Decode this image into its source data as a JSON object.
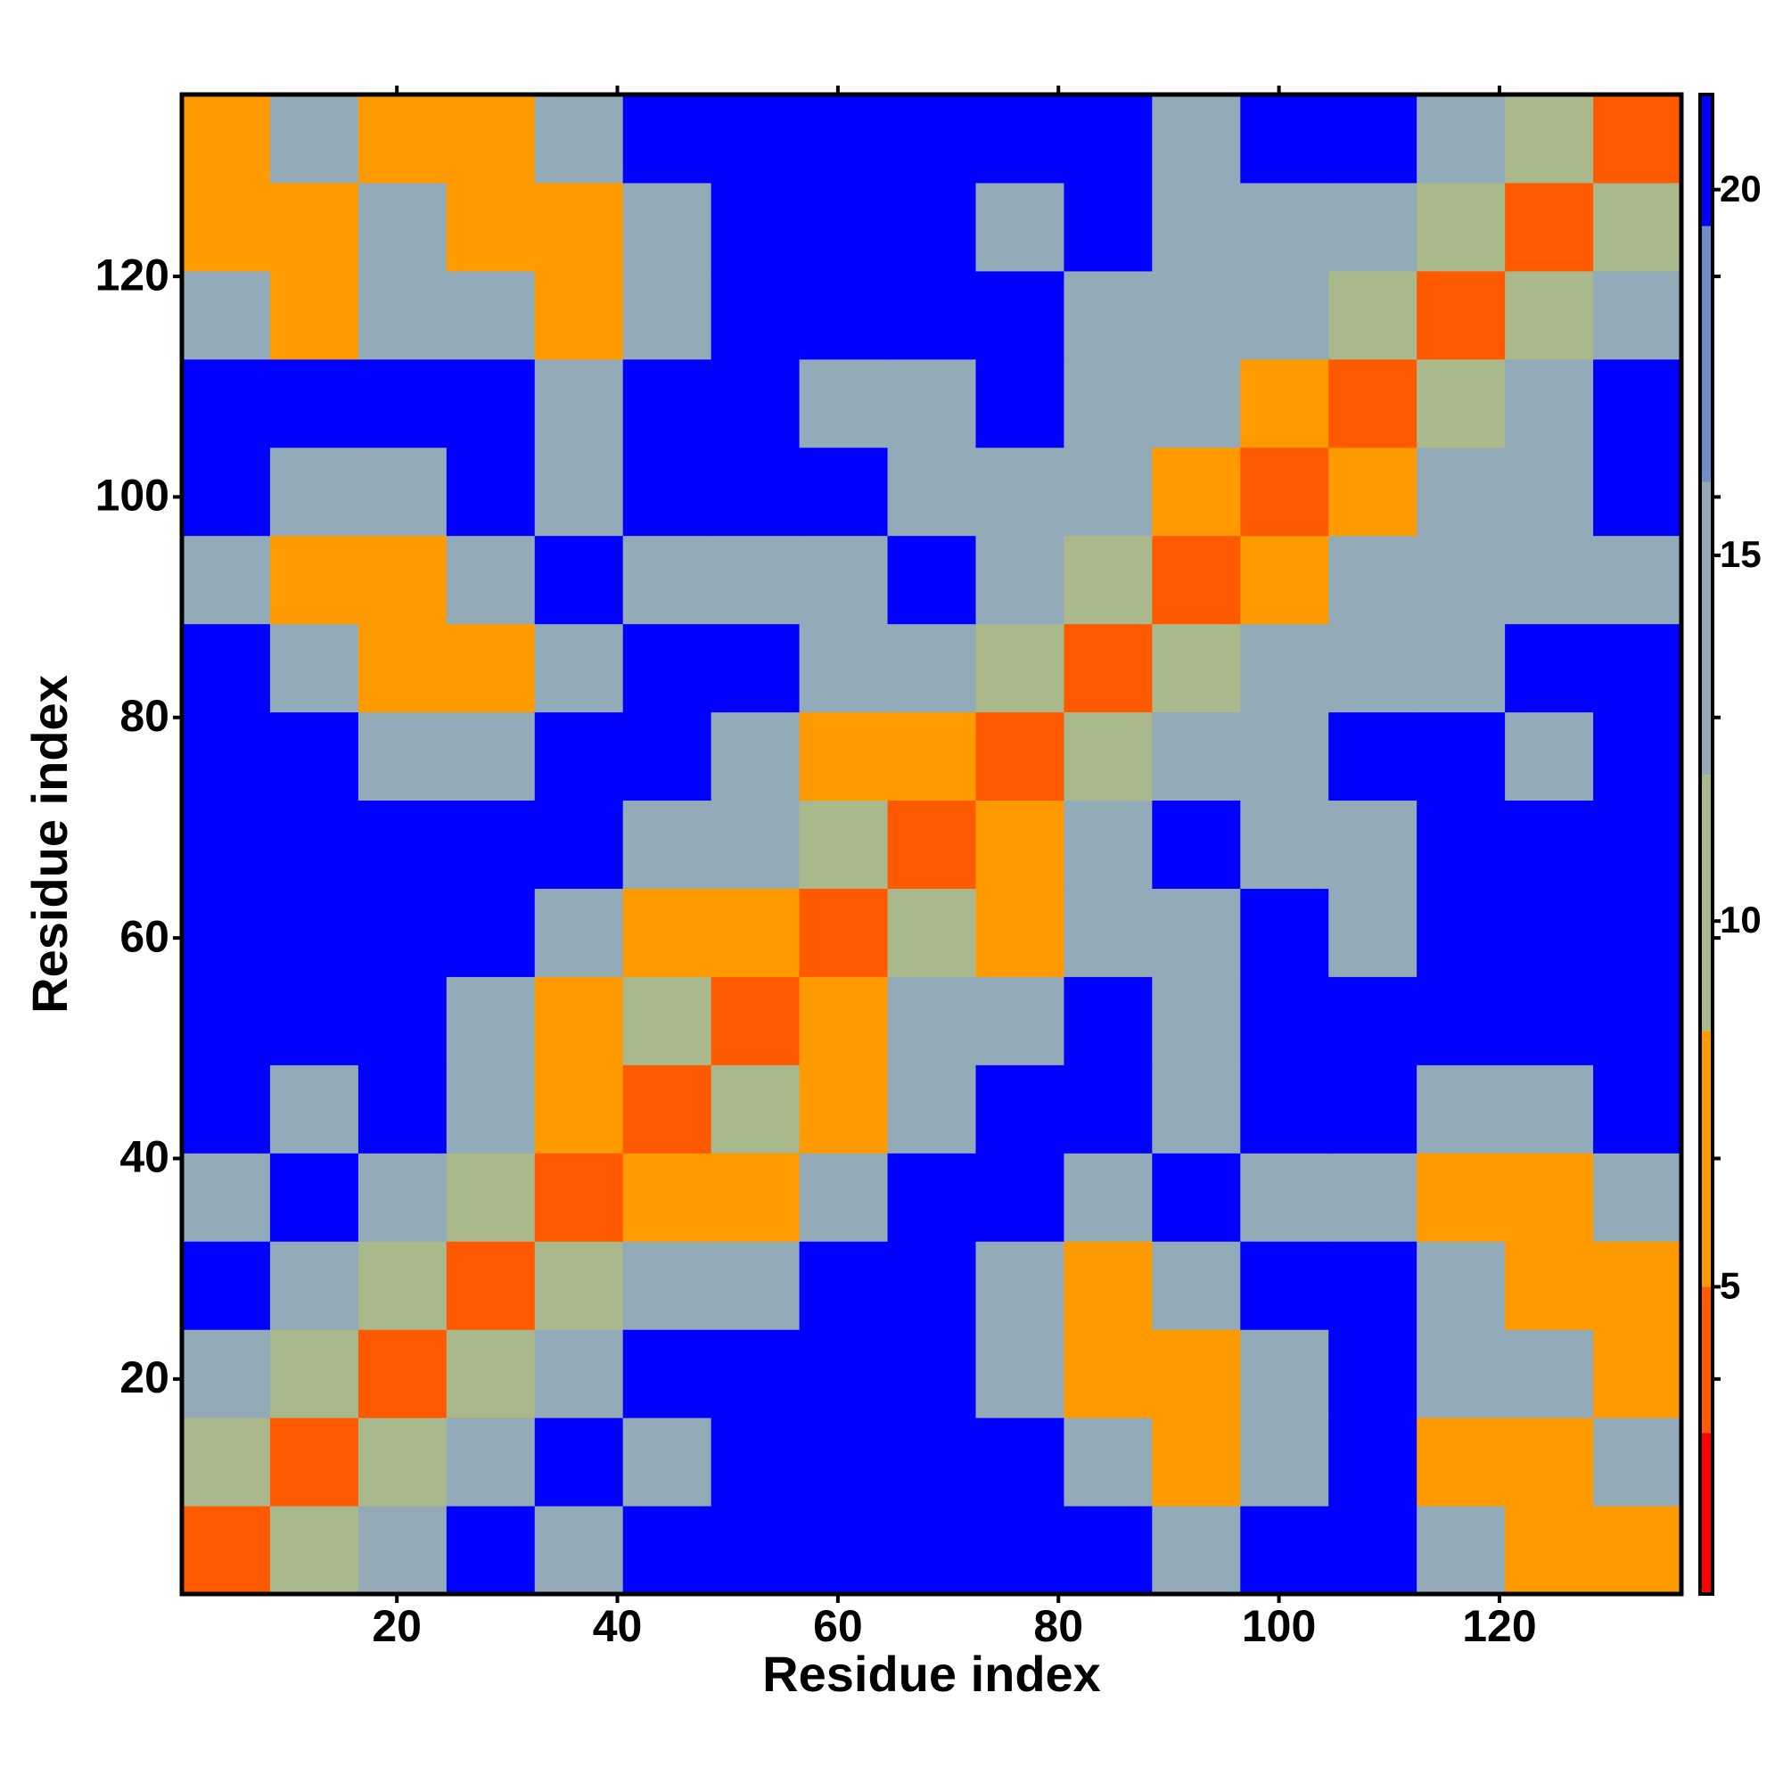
{
  "chart_data": {
    "type": "heatmap",
    "xlabel": "Residue index",
    "ylabel": "Residue index",
    "xlim": [
      0.5,
      136.5
    ],
    "ylim": [
      0.5,
      136.5
    ],
    "xticks": [
      20,
      40,
      60,
      80,
      100,
      120
    ],
    "yticks": [
      20,
      40,
      60,
      80,
      100,
      120
    ],
    "x": [
      4.5,
      12.5,
      20.5,
      28.5,
      36.5,
      44.5,
      52.5,
      60.5,
      68.5,
      76.5,
      84.5,
      92.5,
      100.5,
      108.5,
      116.5,
      124.5,
      132.5
    ],
    "y": [
      4.5,
      12.5,
      20.5,
      28.5,
      36.5,
      44.5,
      52.5,
      60.5,
      68.5,
      76.5,
      84.5,
      92.5,
      100.5,
      108.5,
      116.5,
      124.5,
      132.5
    ],
    "z": [
      [
        3.5,
        10,
        15,
        20,
        15,
        20,
        20,
        20,
        20,
        20,
        20,
        15,
        20,
        20,
        12,
        8,
        8
      ],
      [
        10,
        3.5,
        10,
        15,
        20,
        15,
        20,
        20,
        20,
        20,
        12,
        8,
        15,
        20,
        8,
        8,
        12
      ],
      [
        15,
        10,
        3.5,
        10,
        15,
        20,
        20,
        20,
        20,
        15,
        8,
        8,
        15,
        20,
        15,
        12,
        8
      ],
      [
        20,
        15,
        10,
        3.5,
        10,
        12,
        15,
        20,
        20,
        15,
        8,
        12,
        20,
        20,
        12,
        8,
        8
      ],
      [
        15,
        20,
        15,
        10,
        3.5,
        8,
        8,
        12,
        20,
        20,
        15,
        20,
        15,
        12,
        8,
        8,
        12
      ],
      [
        20,
        15,
        20,
        12,
        8,
        3.5,
        10,
        8,
        12,
        20,
        20,
        15,
        20,
        20,
        15,
        12,
        20
      ],
      [
        20,
        20,
        20,
        15,
        8,
        10,
        3.5,
        8,
        12,
        15,
        20,
        15,
        20,
        20,
        20,
        20,
        20
      ],
      [
        20,
        20,
        20,
        20,
        12,
        8,
        8,
        3.5,
        10,
        8,
        12,
        15,
        20,
        15,
        20,
        20,
        20
      ],
      [
        20,
        20,
        20,
        20,
        20,
        12,
        12,
        10,
        3.5,
        8,
        12,
        20,
        15,
        15,
        20,
        20,
        20
      ],
      [
        20,
        20,
        15,
        15,
        20,
        20,
        15,
        8,
        8,
        3.5,
        10,
        12,
        15,
        20,
        20,
        15,
        20
      ],
      [
        20,
        12,
        8,
        8,
        15,
        20,
        20,
        12,
        12,
        10,
        3.5,
        10,
        12,
        15,
        15,
        20,
        20
      ],
      [
        15,
        8,
        8,
        12,
        20,
        15,
        15,
        15,
        20,
        12,
        10,
        3.5,
        8,
        12,
        15,
        15,
        15
      ],
      [
        20,
        15,
        15,
        20,
        15,
        20,
        20,
        20,
        15,
        15,
        12,
        8,
        3.5,
        8,
        12,
        15,
        20
      ],
      [
        20,
        20,
        20,
        20,
        12,
        20,
        20,
        15,
        15,
        20,
        15,
        12,
        8,
        3.5,
        10,
        15,
        20
      ],
      [
        12,
        8,
        15,
        12,
        8,
        15,
        20,
        20,
        20,
        20,
        15,
        15,
        12,
        10,
        3.5,
        10,
        15
      ],
      [
        8,
        8,
        12,
        8,
        8,
        12,
        20,
        20,
        20,
        15,
        20,
        15,
        15,
        15,
        10,
        3.5,
        10
      ],
      [
        8,
        12,
        8,
        8,
        12,
        20,
        20,
        20,
        20,
        20,
        20,
        15,
        20,
        20,
        15,
        10,
        3.5
      ]
    ],
    "colorscale": [
      [
        0.8,
        "#ff0000"
      ],
      [
        3,
        "#ff5a00"
      ],
      [
        5,
        "#ff9a00"
      ],
      [
        8.5,
        "#a9b98c"
      ],
      [
        12,
        "#93aab8"
      ],
      [
        16,
        "#6f8fc8"
      ],
      [
        19.5,
        "#0000ff"
      ]
    ],
    "colorbar": {
      "lim": [
        0.8,
        21.3
      ],
      "ticks": [
        5,
        10,
        15,
        20
      ]
    }
  }
}
